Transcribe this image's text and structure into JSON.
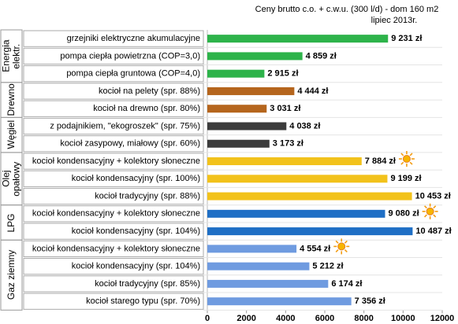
{
  "chart_data": {
    "type": "bar",
    "orientation": "horizontal",
    "title": "Ceny brutto  c.o. + c.w.u. (300 l/d) - dom 160 m2",
    "subtitle": "lipiec 2013r.",
    "xlim": [
      0,
      12000
    ],
    "xticks": [
      0,
      2000,
      4000,
      6000,
      8000,
      10000,
      12000
    ],
    "series": [
      {
        "name": "Energia elektr.",
        "color": "#2db34a",
        "categories": [
          "grzejniki elektryczne akumulacyjne",
          "pompa ciepła powietrzna (COP=3,0)",
          "pompa ciepła gruntowa (COP=4,0)"
        ],
        "values": [
          9231,
          4859,
          2915
        ],
        "value_labels": [
          "9 231 zł",
          "4 859 zł",
          "2 915 zł"
        ]
      },
      {
        "name": "Drewno",
        "color": "#b5651d",
        "categories": [
          "kocioł na pelety (spr. 88%)",
          "kocioł na drewno (spr. 80%)"
        ],
        "values": [
          4444,
          3031
        ],
        "value_labels": [
          "4 444 zł",
          "3 031 zł"
        ]
      },
      {
        "name": "Węgiel",
        "color": "#3c3c3c",
        "categories": [
          "z podajnikiem, \"ekogroszek\" (spr. 75%)",
          "kocioł zasypowy, miałowy (spr. 60%)"
        ],
        "values": [
          4038,
          3173
        ],
        "value_labels": [
          "4 038 zł",
          "3 173 zł"
        ]
      },
      {
        "name": "Olej opałowy",
        "color": "#f2c21b",
        "categories": [
          "kocioł kondensacyjny + kolektory słoneczne",
          "kocioł kondensacyjny (spr. 100%)",
          "kocioł tradycyjny (spr. 88%)"
        ],
        "values": [
          7884,
          9199,
          10453
        ],
        "value_labels": [
          "7 884 zł",
          "9 199 zł",
          "10 453 zł"
        ]
      },
      {
        "name": "LPG",
        "color": "#1f6fc5",
        "categories": [
          "kocioł kondensacyjny + kolektory słoneczne",
          "kocioł kondensacyjny (spr. 104%)"
        ],
        "values": [
          9080,
          10487
        ],
        "value_labels": [
          "9 080 zł",
          "10 487 zł"
        ]
      },
      {
        "name": "Gaz ziemny",
        "color": "#6f9be0",
        "categories": [
          "kocioł kondensacyjny + kolektory słoneczne",
          "kocioł kondensacyjny (spr. 104%)",
          "kocioł tradycyjny (spr. 85%)",
          "kocioł starego typu (spr. 70%)"
        ],
        "values": [
          4554,
          5212,
          6174,
          7356
        ],
        "value_labels": [
          "4 554 zł",
          "5 212 zł",
          "6 174 zł",
          "7 356 zł"
        ]
      }
    ]
  }
}
